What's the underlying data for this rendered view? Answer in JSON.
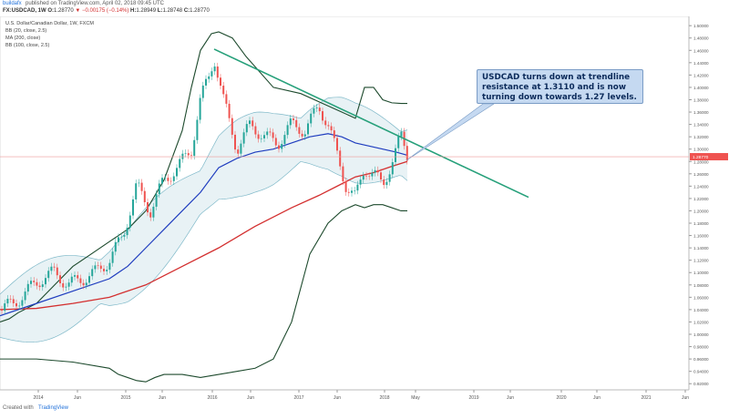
{
  "header": {
    "author": "buildafx",
    "published": "published on TradingView.com, April 02, 2018 09:45 UTC",
    "symbol": "FX:USDCAD, 1W",
    "o_label": "O:",
    "o": "1.28770",
    "change": "▼ −0.00175 (−0.14%)",
    "h_label": "H:",
    "h": "1.28949",
    "l_label": "L:",
    "l": "1.28748",
    "c_label": "C:",
    "c": "1.28770"
  },
  "legend": {
    "line1": "U.S. Dollar/Canadian Dollar, 1W, FXCM",
    "line2": "BB (20, close, 2.5)",
    "line3": "MA (200, close)",
    "line4": "BB (100, close, 2.5)"
  },
  "annotation": {
    "text": "USDCAD turns down at trendline resistance at 1.3110 and is now turning down towards 1.27 levels."
  },
  "footer": {
    "created": "Created with",
    "brand": "TradingView"
  },
  "colors": {
    "up": "#26a69a",
    "down": "#ef5350",
    "ma200": "#d32f2f",
    "bb20_mid": "#1f3dbf",
    "bb100": "#1d4a2d",
    "bb20_band": "#7fb9c9",
    "trendline": "#26a07a",
    "price_line": "#ef9a9a"
  },
  "chart_data": {
    "type": "candlestick",
    "title": "U.S. Dollar/Canadian Dollar, 1W, FXCM",
    "x_ticks": [
      "2014",
      "Jun",
      "2015",
      "Jun",
      "2016",
      "Jun",
      "2017",
      "Jun",
      "2018",
      "May",
      "2019",
      "Jun",
      "2020",
      "Jun",
      "2021",
      "Jun"
    ],
    "y_ticks": [
      "1.50000",
      "1.48000",
      "1.46000",
      "1.44000",
      "1.42000",
      "1.40000",
      "1.38000",
      "1.36000",
      "1.34000",
      "1.32000",
      "1.30000",
      "1.28000",
      "1.26000",
      "1.24000",
      "1.22000",
      "1.20000",
      "1.18000",
      "1.16000",
      "1.14000",
      "1.12000",
      "1.10000",
      "1.08000",
      "1.06000",
      "1.04000",
      "1.02000",
      "1.00000",
      "0.98000",
      "0.96000",
      "0.94000",
      "0.92000"
    ],
    "ylim": [
      0.91,
      1.515
    ],
    "last_price_label": "1.28770",
    "last_price": 1.2877,
    "series": [
      {
        "name": "BB (100, close, 2.5) upper",
        "x": [
          0,
          10,
          20,
          40,
          60,
          80,
          100,
          120,
          140,
          160,
          180,
          200,
          210,
          220,
          232,
          240,
          255,
          270,
          300,
          330,
          360,
          375,
          390,
          400,
          410,
          420,
          430,
          440,
          447
        ],
        "values": [
          1.02,
          1.025,
          1.035,
          1.05,
          1.08,
          1.11,
          1.13,
          1.15,
          1.17,
          1.2,
          1.25,
          1.33,
          1.4,
          1.46,
          1.487,
          1.49,
          1.48,
          1.45,
          1.4,
          1.39,
          1.37,
          1.36,
          1.35,
          1.4,
          1.4,
          1.38,
          1.375,
          1.374,
          1.374
        ]
      },
      {
        "name": "BB (100, close, 2.5) lower",
        "x": [
          0,
          40,
          80,
          120,
          130,
          140,
          150,
          160,
          170,
          180,
          200,
          220,
          240,
          260,
          280,
          300,
          320,
          340,
          360,
          375,
          390,
          400,
          410,
          420,
          430,
          440,
          447
        ],
        "values": [
          0.96,
          0.96,
          0.955,
          0.945,
          0.935,
          0.93,
          0.925,
          0.923,
          0.93,
          0.935,
          0.935,
          0.93,
          0.935,
          0.94,
          0.945,
          0.96,
          1.02,
          1.13,
          1.18,
          1.2,
          1.21,
          1.205,
          1.21,
          1.21,
          1.205,
          1.2,
          1.2
        ]
      },
      {
        "name": "MA (200, close)",
        "x": [
          0,
          40,
          80,
          120,
          160,
          200,
          240,
          280,
          320,
          350,
          370,
          390,
          410,
          430,
          447
        ],
        "values": [
          1.04,
          1.042,
          1.05,
          1.06,
          1.08,
          1.11,
          1.14,
          1.175,
          1.205,
          1.225,
          1.24,
          1.255,
          1.262,
          1.272,
          1.28
        ]
      },
      {
        "name": "BB (20, close, 2.5) basis",
        "x": [
          0,
          40,
          80,
          120,
          140,
          160,
          180,
          200,
          220,
          240,
          260,
          280,
          300,
          320,
          340,
          360,
          375,
          390,
          405,
          420,
          435,
          447
        ],
        "values": [
          1.03,
          1.05,
          1.07,
          1.09,
          1.11,
          1.14,
          1.17,
          1.2,
          1.23,
          1.27,
          1.285,
          1.295,
          1.3,
          1.31,
          1.32,
          1.325,
          1.32,
          1.31,
          1.305,
          1.3,
          1.295,
          1.29
        ]
      }
    ],
    "trendline": {
      "x": [
        235,
        580
      ],
      "values": [
        1.462,
        1.222
      ]
    },
    "candles_ohlc_weekly_approx": {
      "x": [
        0,
        15,
        30,
        45,
        60,
        75,
        90,
        105,
        120,
        135,
        150,
        165,
        180,
        195,
        210,
        220,
        230,
        235,
        245,
        260,
        275,
        290,
        305,
        320,
        335,
        350,
        360,
        370,
        380,
        390,
        400,
        410,
        420,
        430,
        440,
        447
      ],
      "values": [
        1.04,
        1.05,
        1.07,
        1.09,
        1.1,
        1.08,
        1.09,
        1.1,
        1.12,
        1.16,
        1.24,
        1.2,
        1.25,
        1.27,
        1.3,
        1.38,
        1.42,
        1.45,
        1.38,
        1.3,
        1.34,
        1.32,
        1.31,
        1.34,
        1.33,
        1.37,
        1.34,
        1.29,
        1.24,
        1.22,
        1.27,
        1.26,
        1.24,
        1.28,
        1.32,
        1.288
      ]
    }
  }
}
